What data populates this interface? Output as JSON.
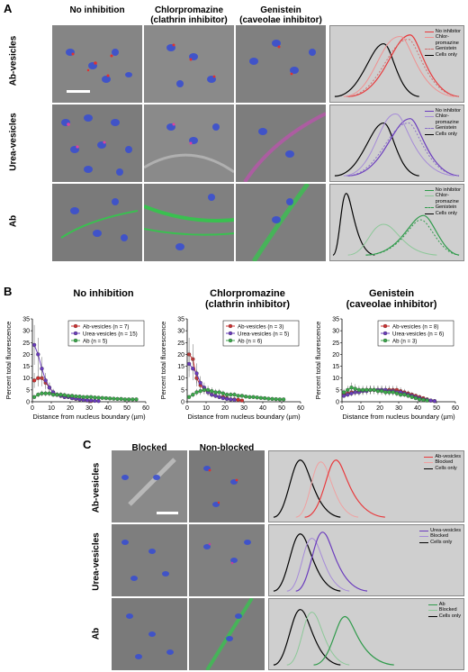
{
  "panelA": {
    "letter": "A",
    "col_headers": [
      "No inhibition",
      "Chlorpromazine (clathrin inhibitor)",
      "Genistein (caveolae inhibitor)"
    ],
    "col_headers_lines": [
      [
        "No inhibition"
      ],
      [
        "Chlorpromazine",
        "(clathrin inhibitor)"
      ],
      [
        "Genistein",
        "(caveolae inhibitor)"
      ]
    ],
    "row_labels": [
      "Ab-vesicles",
      "Urea-vesicles",
      "Ab"
    ],
    "flow_legends": [
      [
        {
          "label": "No inhibitor",
          "color": "#e8383b",
          "dash": false
        },
        {
          "label": "Chlor-\npromazine",
          "color": "#f09090",
          "dash": false
        },
        {
          "label": "Genistein",
          "color": "#d07070",
          "dash": true
        },
        {
          "label": "Cells only",
          "color": "#000000",
          "dash": false
        }
      ],
      [
        {
          "label": "No inhibitor",
          "color": "#6a3bbd",
          "dash": false
        },
        {
          "label": "Chlor-\npromazine",
          "color": "#a58ad8",
          "dash": false
        },
        {
          "label": "Genistein",
          "color": "#8a70c8",
          "dash": true
        },
        {
          "label": "Cells only",
          "color": "#000000",
          "dash": false
        }
      ],
      [
        {
          "label": "No inhibitor",
          "color": "#2e9a4a",
          "dash": false
        },
        {
          "label": "Chlor-\npromazine",
          "color": "#8cc898",
          "dash": false
        },
        {
          "label": "Genistein",
          "color": "#2e9a4a",
          "dash": true
        },
        {
          "label": "Cells only",
          "color": "#000000",
          "dash": false
        }
      ]
    ]
  },
  "panelB": {
    "letter": "B",
    "titles": [
      [
        "No inhibition"
      ],
      [
        "Chlorpromazine",
        "(clathrin inhibitor)"
      ],
      [
        "Genistein",
        "(caveolae inhibitor)"
      ]
    ],
    "ylabel": "Percent total fluorescence",
    "xlabel": "Distance from nucleus boundary (µm)"
  },
  "chart_data": [
    {
      "type": "line",
      "title": "No inhibition",
      "xlabel": "Distance from nucleus boundary (µm)",
      "ylabel": "Percent total fluorescence",
      "xlim": [
        0,
        60
      ],
      "ylim": [
        0,
        35
      ],
      "xticks": [
        0,
        10,
        20,
        30,
        40,
        50,
        60
      ],
      "yticks": [
        0,
        5,
        10,
        15,
        20,
        25,
        30,
        35
      ],
      "legend_position": "top-right",
      "series": [
        {
          "name": "Ab-vesicles (n = 7)",
          "color": "#d03030",
          "x": [
            1,
            3,
            5,
            7,
            9,
            11,
            13,
            15,
            17,
            19,
            21,
            23,
            25,
            27,
            29,
            31
          ],
          "y": [
            9,
            10,
            10,
            8,
            6,
            4,
            3,
            2.5,
            2,
            2,
            1.5,
            1.2,
            1,
            0.8,
            0.5,
            0.3
          ]
        },
        {
          "name": "Urea-vesicles (n = 15)",
          "color": "#6a3bbd",
          "x": [
            1,
            3,
            5,
            7,
            9,
            11,
            13,
            15,
            17,
            19,
            21,
            23,
            25,
            27,
            29,
            31,
            33,
            35
          ],
          "y": [
            24,
            20,
            14,
            9,
            6,
            4,
            3,
            2.5,
            2,
            2,
            1.5,
            1.3,
            1,
            0.8,
            0.6,
            0.5,
            0.4,
            0.3
          ]
        },
        {
          "name": "Ab (n = 5)",
          "color": "#3aa84a",
          "x": [
            1,
            3,
            5,
            7,
            9,
            11,
            13,
            15,
            17,
            19,
            21,
            23,
            25,
            27,
            29,
            31,
            33,
            35,
            37,
            39,
            41,
            43,
            45,
            47,
            49,
            51,
            53,
            55
          ],
          "y": [
            2,
            3,
            3.5,
            3.5,
            3.5,
            3,
            3,
            3,
            2.8,
            2.5,
            2.5,
            2.3,
            2.2,
            2,
            2,
            2,
            1.8,
            1.7,
            1.6,
            1.5,
            1.4,
            1.3,
            1.2,
            1.2,
            1,
            1,
            1,
            1
          ]
        }
      ]
    },
    {
      "type": "line",
      "title": "Chlorpromazine (clathrin inhibitor)",
      "xlabel": "Distance from nucleus boundary (µm)",
      "ylabel": "Percent total fluorescence",
      "xlim": [
        0,
        60
      ],
      "ylim": [
        0,
        35
      ],
      "xticks": [
        0,
        10,
        20,
        30,
        40,
        50,
        60
      ],
      "yticks": [
        0,
        5,
        10,
        15,
        20,
        25,
        30,
        35
      ],
      "legend_position": "top-right",
      "series": [
        {
          "name": "Ab-vesicles (n = 3)",
          "color": "#d03030",
          "x": [
            1,
            3,
            5,
            7,
            9,
            11,
            13,
            15,
            17,
            19,
            21,
            23,
            25,
            27,
            29
          ],
          "y": [
            20,
            18,
            10,
            7,
            5,
            4,
            3,
            2.5,
            2,
            2,
            1.5,
            1,
            1,
            0.8,
            0.5
          ]
        },
        {
          "name": "Urea-vesicles (n = 5)",
          "color": "#6a3bbd",
          "x": [
            1,
            3,
            5,
            7,
            9,
            11,
            13,
            15,
            17,
            19,
            21,
            23,
            25
          ],
          "y": [
            16,
            14,
            12,
            8,
            6,
            4,
            3,
            2.5,
            2,
            1.5,
            1.2,
            1,
            0.8
          ]
        },
        {
          "name": "Ab (n = 6)",
          "color": "#3aa84a",
          "x": [
            1,
            3,
            5,
            7,
            9,
            11,
            13,
            15,
            17,
            19,
            21,
            23,
            25,
            27,
            29,
            31,
            33,
            35,
            37,
            39,
            41,
            43,
            45,
            47,
            49,
            51
          ],
          "y": [
            2,
            3,
            4,
            4.5,
            5,
            5,
            4.5,
            4,
            4,
            3.5,
            3,
            3,
            3,
            2.5,
            2.5,
            2.2,
            2,
            2,
            1.8,
            1.6,
            1.5,
            1.3,
            1.2,
            1.1,
            1,
            1
          ]
        }
      ]
    },
    {
      "type": "line",
      "title": "Genistein (caveolae inhibitor)",
      "xlabel": "Distance from nucleus boundary (µm)",
      "ylabel": "Percent total fluorescence",
      "xlim": [
        0,
        60
      ],
      "ylim": [
        0,
        35
      ],
      "xticks": [
        0,
        10,
        20,
        30,
        40,
        50,
        60
      ],
      "yticks": [
        0,
        5,
        10,
        15,
        20,
        25,
        30,
        35
      ],
      "legend_position": "top-right",
      "series": [
        {
          "name": "Ab-vesicles (n = 8)",
          "color": "#d03030",
          "x": [
            1,
            3,
            5,
            7,
            9,
            11,
            13,
            15,
            17,
            19,
            21,
            23,
            25,
            27,
            29,
            31,
            33,
            35,
            37,
            39,
            41,
            43,
            45,
            47,
            49
          ],
          "y": [
            3,
            3.5,
            4,
            4,
            4.5,
            4.5,
            5,
            5,
            5,
            5,
            5,
            5,
            5,
            5,
            5,
            4.5,
            4,
            3.5,
            3,
            2.5,
            2,
            1.5,
            1,
            0.5,
            0.3
          ]
        },
        {
          "name": "Urea-vesicles (n = 6)",
          "color": "#6a3bbd",
          "x": [
            1,
            3,
            5,
            7,
            9,
            11,
            13,
            15,
            17,
            19,
            21,
            23,
            25,
            27,
            29,
            31,
            33,
            35,
            37,
            39,
            41,
            43,
            45,
            47,
            49
          ],
          "y": [
            2.5,
            3,
            3.5,
            4,
            4,
            4.5,
            4.5,
            5,
            5,
            5,
            5,
            5,
            4.5,
            4.5,
            4,
            4,
            3.5,
            3,
            2.5,
            2,
            1.5,
            1,
            0.8,
            0.5,
            0.3
          ]
        },
        {
          "name": "Ab (n = 3)",
          "color": "#3aa84a",
          "x": [
            1,
            3,
            5,
            7,
            9,
            11,
            13,
            15,
            17,
            19,
            21,
            23,
            25,
            27,
            29,
            31,
            33,
            35,
            37,
            39,
            41,
            43,
            45
          ],
          "y": [
            4,
            5,
            6,
            5.5,
            5,
            5,
            5,
            5,
            5,
            4.5,
            4.5,
            4,
            4,
            4,
            3.5,
            3,
            3,
            2.5,
            2,
            1.5,
            1,
            0.8,
            0.5
          ]
        }
      ]
    }
  ],
  "panelC": {
    "letter": "C",
    "col_headers": [
      "Blocked",
      "Non-blocked"
    ],
    "row_labels": [
      "Ab-vesicles",
      "Urea-vesicles",
      "Ab"
    ],
    "flow_legends": [
      [
        {
          "label": "Ab-vesicles",
          "color": "#e8383b",
          "dash": false
        },
        {
          "label": "Blocked",
          "color": "#f0a0a0",
          "dash": false
        },
        {
          "label": "Cells only",
          "color": "#000000",
          "dash": false
        }
      ],
      [
        {
          "label": "Urea-vesicles",
          "color": "#6a3bbd",
          "dash": false
        },
        {
          "label": "Blocked",
          "color": "#a58ad8",
          "dash": false
        },
        {
          "label": "Cells only",
          "color": "#000000",
          "dash": false
        }
      ],
      [
        {
          "label": "Ab",
          "color": "#2e9a4a",
          "dash": false
        },
        {
          "label": "Blocked",
          "color": "#8cc898",
          "dash": false
        },
        {
          "label": "Cells only",
          "color": "#000000",
          "dash": false
        }
      ]
    ]
  }
}
